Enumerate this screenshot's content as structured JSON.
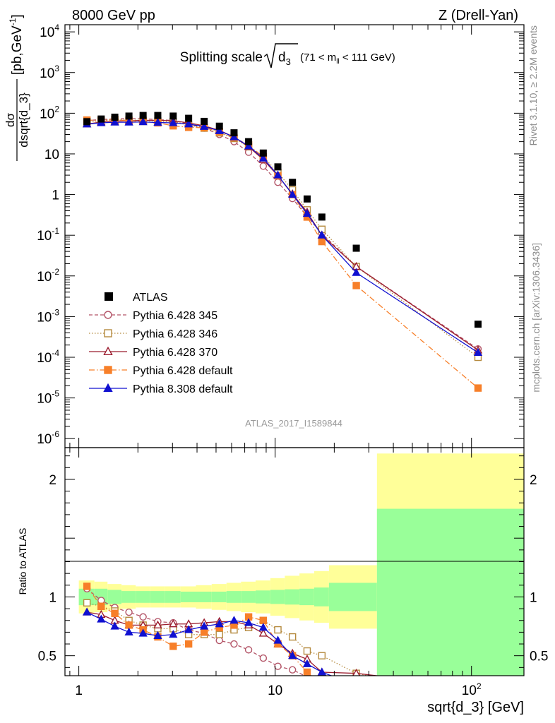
{
  "header": {
    "left": "8000 GeV pp",
    "right": "Z (Drell-Yan)"
  },
  "title": {
    "main": "Splitting scale",
    "var_symbol": "d",
    "var_sub": "3",
    "cut_open": "(71 < m",
    "cut_sub": "ll",
    "cut_close": " < 111 GeV)"
  },
  "side_labels": {
    "rivet": "Rivet 3.1.10, ≥ 2.2M events",
    "mcplots": "mcplots.cern.ch [arXiv:1306.3436]"
  },
  "analysis_id": "ATLAS_2017_I1589844",
  "axes": {
    "ylabel_top_num": "dσ",
    "ylabel_top_den": "dsqrt{d_3}",
    "ylabel_top_units": "[pb,GeV",
    "ylabel_top_units_sup": "-1",
    "ylabel_top_units_close": "]",
    "ylabel_bottom": "Ratio to ATLAS",
    "xlabel": "sqrt{d_3} [GeV]"
  },
  "legend": [
    {
      "label": "ATLAS"
    },
    {
      "label": "Pythia 6.428 345"
    },
    {
      "label": "Pythia 6.428 346"
    },
    {
      "label": "Pythia 6.428 370"
    },
    {
      "label": "Pythia 6.428 default"
    },
    {
      "label": "Pythia 8.308 default"
    }
  ],
  "colors": {
    "atlas": "#000000",
    "p345": "#b35467",
    "p346": "#b58a3e",
    "p370": "#9b1c2e",
    "p6def": "#f77f29",
    "p8def": "#1010d0",
    "band_inner": "#99ff99",
    "band_outer": "#ffff99"
  },
  "chart_data": {
    "type": "scatter",
    "x_scale": "log",
    "xlim": [
      0.85,
      185
    ],
    "top": {
      "y_scale": "log",
      "ylim": [
        6e-07,
        15000
      ],
      "y_tick_labels": [
        "10^-6",
        "10^-5",
        "10^-4",
        "10^-3",
        "10^-2",
        "10^-1",
        "1",
        "10",
        "10^2",
        "10^3",
        "10^4"
      ]
    },
    "bottom": {
      "y_scale": "linear",
      "ylim": [
        0.33,
        2.27
      ],
      "y_ticks": [
        0.5,
        1,
        2
      ],
      "y_tick_labels": [
        "0.5",
        "1",
        "2"
      ]
    },
    "x_tick_labels": [
      "1",
      "10",
      "10^2"
    ],
    "bins": [
      [
        1.0,
        1.2
      ],
      [
        1.2,
        1.4
      ],
      [
        1.4,
        1.65
      ],
      [
        1.65,
        1.95
      ],
      [
        1.95,
        2.3
      ],
      [
        2.3,
        2.75
      ],
      [
        2.75,
        3.3
      ],
      [
        3.3,
        3.95
      ],
      [
        3.95,
        4.75
      ],
      [
        4.75,
        5.65
      ],
      [
        5.65,
        6.7
      ],
      [
        6.7,
        7.95
      ],
      [
        7.95,
        9.45
      ],
      [
        9.45,
        11.2
      ],
      [
        11.2,
        13.3
      ],
      [
        13.3,
        15.8
      ],
      [
        15.8,
        18.8
      ],
      [
        18.8,
        33.0
      ],
      [
        33.0,
        185.0
      ]
    ],
    "x": [
      1.1,
      1.3,
      1.525,
      1.8,
      2.125,
      2.525,
      3.025,
      3.625,
      4.35,
      5.2,
      6.175,
      7.325,
      8.7,
      10.325,
      12.25,
      14.55,
      17.3,
      25.9,
      108.0
    ],
    "atlas": [
      62,
      72,
      80,
      85,
      88,
      88,
      85,
      75,
      63,
      48,
      33,
      20,
      10.5,
      4.8,
      2.0,
      0.78,
      0.28,
      0.048,
      0.00065
    ],
    "band_inner": [
      0.07,
      0.07,
      0.06,
      0.05,
      0.05,
      0.05,
      0.05,
      0.045,
      0.045,
      0.045,
      0.05,
      0.05,
      0.055,
      0.06,
      0.065,
      0.07,
      0.08,
      0.12,
      0.75
    ],
    "band_outer": [
      0.14,
      0.13,
      0.11,
      0.1,
      0.09,
      0.09,
      0.09,
      0.09,
      0.1,
      0.11,
      0.12,
      0.13,
      0.14,
      0.16,
      0.18,
      0.2,
      0.22,
      0.27,
      1.22
    ],
    "series": [
      {
        "name": "Pythia 6.428 345",
        "key": "p345",
        "marker": "circle-open",
        "dash": "5,3",
        "ratio": [
          1.07,
          0.97,
          0.91,
          0.87,
          0.83,
          0.79,
          0.78,
          0.72,
          0.69,
          0.63,
          0.6,
          0.55,
          0.48,
          0.41,
          0.38,
          0.32,
          0.25,
          0.28,
          0.24
        ],
        "values": [
          66,
          70,
          73,
          74,
          73,
          70,
          66,
          54,
          43,
          30,
          20,
          11,
          5.0,
          2.0,
          0.8,
          0.29,
          0.11,
          0.017,
          0.00016
        ]
      },
      {
        "name": "Pythia 6.428 346",
        "key": "p346",
        "marker": "square-open",
        "dash": "1.5,2.5",
        "ratio": [
          0.95,
          0.92,
          0.88,
          0.8,
          0.76,
          0.73,
          0.73,
          0.68,
          0.68,
          0.68,
          0.72,
          0.74,
          0.8,
          0.72,
          0.66,
          0.54,
          0.5,
          0.35,
          0.15
        ],
        "values": [
          59,
          66,
          70,
          68,
          67,
          64,
          62,
          51,
          43,
          33,
          24,
          15,
          8.4,
          3.5,
          1.3,
          0.42,
          0.14,
          0.017,
          0.0001
        ]
      },
      {
        "name": "Pythia 6.428 370",
        "key": "p370",
        "marker": "triangle-open",
        "dash": "",
        "ratio": [
          0.87,
          0.85,
          0.8,
          0.76,
          0.76,
          0.76,
          0.77,
          0.77,
          0.78,
          0.79,
          0.79,
          0.76,
          0.69,
          0.6,
          0.52,
          0.47,
          0.36,
          0.35,
          0.23
        ],
        "values": [
          54,
          61,
          64,
          65,
          67,
          67,
          65,
          58,
          49,
          38,
          26,
          15,
          7.2,
          2.9,
          1.04,
          0.37,
          0.1,
          0.017,
          0.00015
        ]
      },
      {
        "name": "Pythia 6.428 default",
        "key": "p6def",
        "marker": "square-filled",
        "dash": "8,3,1.5,3",
        "ratio": [
          1.09,
          0.92,
          0.86,
          0.76,
          0.72,
          0.66,
          0.58,
          0.6,
          0.7,
          0.74,
          0.76,
          0.83,
          0.8,
          0.6,
          0.5,
          0.36,
          0.25,
          0.12,
          0.027
        ],
        "values": [
          68,
          66,
          69,
          65,
          63,
          58,
          49,
          45,
          44,
          35,
          25,
          16.6,
          8.4,
          2.9,
          1.0,
          0.28,
          0.07,
          0.0058,
          1.75e-05
        ]
      },
      {
        "name": "Pythia 8.308 default",
        "key": "p8def",
        "marker": "triangle-filled",
        "dash": "",
        "ratio": [
          0.87,
          0.81,
          0.75,
          0.7,
          0.69,
          0.67,
          0.68,
          0.72,
          0.75,
          0.77,
          0.8,
          0.78,
          0.74,
          0.63,
          0.5,
          0.43,
          0.36,
          0.25,
          0.2
        ],
        "values": [
          54,
          58,
          60,
          60,
          61,
          59,
          58,
          54,
          47,
          37,
          26,
          15.6,
          7.8,
          3.0,
          1.0,
          0.34,
          0.1,
          0.012,
          0.00013
        ]
      }
    ]
  }
}
